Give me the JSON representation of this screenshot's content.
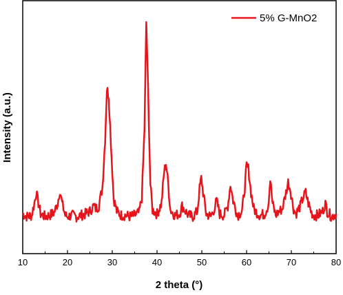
{
  "chart_data": {
    "type": "line",
    "title": "",
    "xlabel": "2 theta (°)",
    "ylabel": "Intensity (a.u.)",
    "xlim": [
      10,
      80
    ],
    "x_ticks": [
      10,
      20,
      30,
      40,
      50,
      60,
      70,
      80
    ],
    "y_tick_labels": false,
    "grid": false,
    "legend_position": "top-right",
    "series": [
      {
        "name": "5% G-MnO2",
        "color": "#e8141b",
        "x": [
          10,
          11,
          12,
          12.6,
          13.0,
          13.5,
          14,
          15,
          16,
          17,
          17.8,
          18.3,
          18.8,
          19.5,
          20,
          21,
          22,
          23,
          24,
          25,
          25.8,
          26.3,
          27,
          27.8,
          28.4,
          28.8,
          29.2,
          29.7,
          30.3,
          31,
          32,
          33,
          34,
          35,
          36,
          36.6,
          37.2,
          37.6,
          38.0,
          38.5,
          39,
          40,
          41,
          41.6,
          42.0,
          42.5,
          43,
          44,
          45,
          45.6,
          46.2,
          47,
          48,
          49,
          49.5,
          49.9,
          50.3,
          51,
          52,
          52.8,
          53.3,
          54,
          55,
          55.8,
          56.4,
          57,
          58,
          59,
          59.6,
          60.0,
          60.4,
          61,
          61.6,
          62,
          63,
          64,
          64.8,
          65.3,
          65.8,
          66.5,
          67,
          68,
          68.8,
          69.3,
          69.8,
          70.5,
          71,
          72,
          72.6,
          73.2,
          73.8,
          74.5,
          75,
          76,
          77,
          77.6,
          78,
          79,
          80
        ],
        "y": [
          6,
          4,
          5,
          14,
          22,
          14,
          6,
          4,
          5,
          7,
          14,
          24,
          14,
          5,
          4,
          5,
          4,
          5,
          6,
          8,
          12,
          10,
          12,
          26,
          62,
          100,
          95,
          60,
          18,
          8,
          5,
          5,
          4,
          5,
          7,
          18,
          70,
          150,
          100,
          28,
          9,
          6,
          14,
          38,
          44,
          28,
          9,
          5,
          6,
          12,
          9,
          5,
          4,
          8,
          25,
          33,
          22,
          6,
          4,
          10,
          16,
          6,
          5,
          12,
          28,
          16,
          5,
          8,
          26,
          42,
          40,
          22,
          10,
          8,
          5,
          6,
          12,
          32,
          14,
          5,
          7,
          10,
          22,
          30,
          24,
          10,
          6,
          12,
          18,
          22,
          14,
          7,
          5,
          5,
          8,
          14,
          8,
          4,
          6
        ]
      }
    ]
  }
}
